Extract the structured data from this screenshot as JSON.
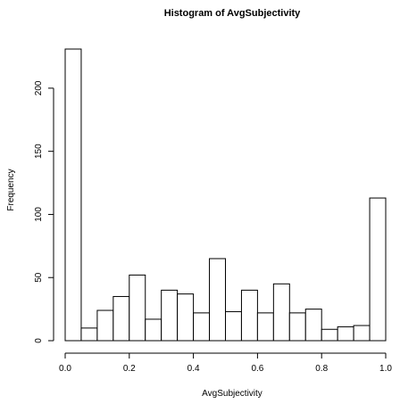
{
  "chart_data": {
    "type": "bar",
    "title": "Histogram of AvgSubjectivity",
    "xlabel": "AvgSubjectivity",
    "ylabel": "Frequency",
    "bin_edges": [
      0.0,
      0.05,
      0.1,
      0.15,
      0.2,
      0.25,
      0.3,
      0.35,
      0.4,
      0.45,
      0.5,
      0.55,
      0.6,
      0.65,
      0.7,
      0.75,
      0.8,
      0.85,
      0.9,
      0.95,
      1.0
    ],
    "values": [
      231,
      10,
      24,
      35,
      52,
      17,
      40,
      37,
      22,
      65,
      23,
      40,
      22,
      45,
      22,
      25,
      9,
      11,
      12,
      113
    ],
    "xlim": [
      0.0,
      1.0
    ],
    "ylim": [
      0,
      231
    ],
    "x_ticks": [
      0.0,
      0.2,
      0.4,
      0.6,
      0.8,
      1.0
    ],
    "x_tick_labels": [
      "0.0",
      "0.2",
      "0.4",
      "0.6",
      "0.8",
      "1.0"
    ],
    "y_ticks": [
      0,
      50,
      100,
      150,
      200
    ],
    "y_tick_labels": [
      "0",
      "50",
      "100",
      "150",
      "200"
    ],
    "grid": false,
    "colors": {
      "bar_fill": "#ffffff",
      "bar_stroke": "#000000"
    }
  }
}
